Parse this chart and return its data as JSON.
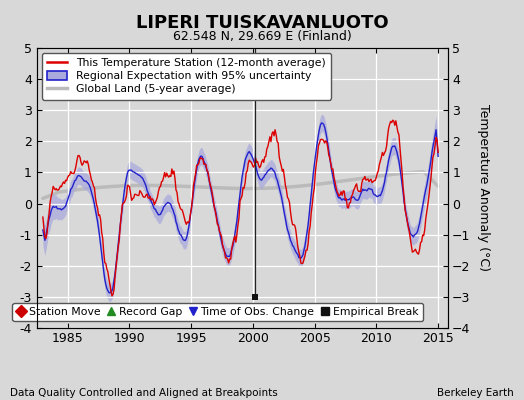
{
  "title": "LIPERI TUISKAVANLUOTO",
  "subtitle": "62.548 N, 29.669 E (Finland)",
  "footer_left": "Data Quality Controlled and Aligned at Breakpoints",
  "footer_right": "Berkeley Earth",
  "ylabel": "Temperature Anomaly (°C)",
  "xlim": [
    1982.5,
    2015.8
  ],
  "ylim": [
    -4,
    5
  ],
  "yticks": [
    -4,
    -3,
    -2,
    -1,
    0,
    1,
    2,
    3,
    4,
    5
  ],
  "xticks": [
    1985,
    1990,
    1995,
    2000,
    2005,
    2010,
    2015
  ],
  "bg_color": "#d8d8d8",
  "plot_bg_color": "#d8d8d8",
  "grid_color": "#ffffff",
  "station_color": "#dd0000",
  "regional_line_color": "#2222cc",
  "regional_fill_color": "#aaaadd",
  "global_color": "#bbbbbb",
  "legend_station": "This Temperature Station (12-month average)",
  "legend_regional": "Regional Expectation with 95% uncertainty",
  "legend_global": "Global Land (5-year average)",
  "marker_labels": [
    "Station Move",
    "Record Gap",
    "Time of Obs. Change",
    "Empirical Break"
  ],
  "marker_colors": [
    "#cc0000",
    "#228b22",
    "#2222cc",
    "#111111"
  ],
  "marker_shapes": [
    "D",
    "^",
    "v",
    "s"
  ],
  "empirical_break_x": 2000.2,
  "empirical_break_y": -3.0
}
